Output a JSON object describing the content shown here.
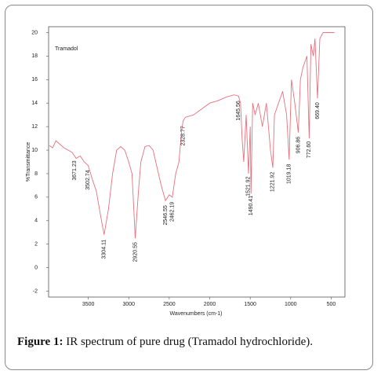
{
  "chart_data": {
    "type": "line",
    "annotation": "Tramadol",
    "xlabel": "Wavenumbers (cm-1)",
    "ylabel": "%Transmittance",
    "xlim": [
      3990,
      330
    ],
    "ylim": [
      -2.5,
      20.5
    ],
    "xticks": [
      3500,
      3000,
      2500,
      2000,
      1500,
      1000,
      500
    ],
    "yticks": [
      -2,
      0,
      2,
      4,
      6,
      8,
      10,
      12,
      14,
      16,
      18,
      20
    ],
    "color": "#e8707c",
    "x": [
      3980,
      3940,
      3900,
      3850,
      3800,
      3750,
      3700,
      3650,
      3600,
      3550,
      3502,
      3450,
      3400,
      3350,
      3304,
      3250,
      3200,
      3150,
      3100,
      3050,
      3000,
      2960,
      2920,
      2880,
      2850,
      2800,
      2750,
      2700,
      2650,
      2600,
      2546,
      2500,
      2462,
      2420,
      2380,
      2350,
      2328,
      2300,
      2200,
      2100,
      2000,
      1900,
      1800,
      1700,
      1645,
      1620,
      1600,
      1580,
      1550,
      1521,
      1500,
      1490,
      1470,
      1440,
      1400,
      1350,
      1300,
      1250,
      1221,
      1200,
      1150,
      1100,
      1050,
      1019,
      990,
      950,
      906,
      880,
      850,
      800,
      772,
      750,
      720,
      700,
      669,
      640,
      600,
      550,
      500,
      460
    ],
    "values": [
      10.4,
      10.2,
      10.8,
      10.5,
      10.2,
      10.0,
      9.8,
      9.3,
      9.5,
      9.0,
      8.7,
      7.5,
      6.5,
      4.5,
      2.8,
      5.0,
      8.0,
      10.0,
      10.3,
      10.0,
      9.0,
      8.0,
      2.5,
      6.5,
      9.0,
      10.3,
      10.4,
      10.0,
      8.5,
      7.0,
      5.7,
      6.2,
      6.0,
      8.0,
      9.0,
      11.5,
      12.5,
      12.8,
      13.0,
      13.5,
      14.0,
      14.2,
      14.5,
      14.7,
      14.6,
      14.0,
      11.0,
      9.0,
      13.0,
      8.0,
      12.0,
      6.3,
      14.0,
      13.0,
      14.0,
      12.0,
      14.0,
      10.0,
      8.5,
      13.0,
      14.0,
      15.0,
      13.0,
      9.2,
      16.0,
      14.0,
      11.5,
      16.0,
      17.0,
      18.0,
      11.0,
      19.0,
      18.0,
      19.5,
      14.4,
      19.5,
      20.0,
      20.0,
      20.0,
      20.0
    ],
    "peak_labels": [
      3502.74,
      3671.23,
      3304.11,
      2920.55,
      2546.55,
      2462.19,
      2328.77,
      1645.56,
      1521.92,
      1490.41,
      1221.92,
      1019.18,
      906.86,
      {
        "value": 772.6,
        "label": "772.60"
      },
      {
        "value": 669.4,
        "label": "669.40"
      }
    ]
  },
  "caption": {
    "label": "Figure 1:",
    "text": "IR spectrum of pure drug (Tramadol hydrochloride)."
  }
}
